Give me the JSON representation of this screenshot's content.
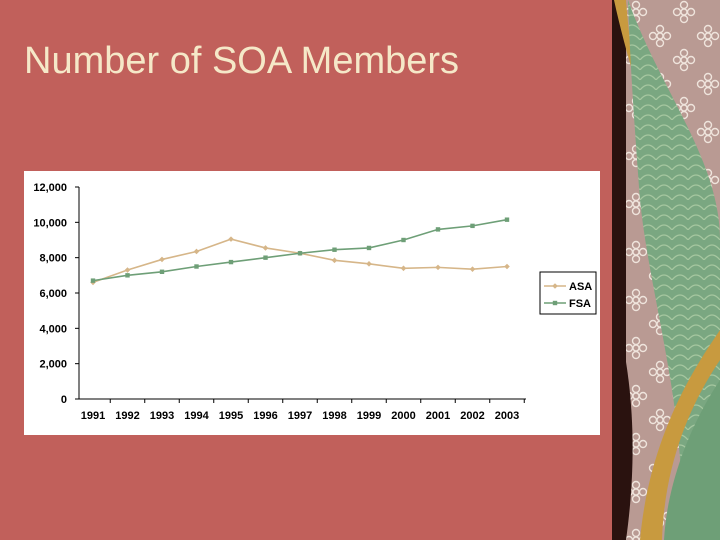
{
  "slide": {
    "title": "Number of SOA Members",
    "colors": {
      "background": "#c1605b",
      "title_text": "#f5e8c8",
      "panel": "#ffffff",
      "dark_border": "#2a120f",
      "sidebar_gold": "#c89a3f",
      "sidebar_green": "#6e9f77",
      "sidebar_flower_bg": "#b58d86"
    },
    "decor": {
      "sidebar_pattern": "flower-pattern",
      "accent": "ribbon-curves"
    }
  },
  "chart_data": {
    "type": "line",
    "title": "",
    "xlabel": "",
    "ylabel": "",
    "categories": [
      "1991",
      "1992",
      "1993",
      "1994",
      "1995",
      "1996",
      "1997",
      "1998",
      "1999",
      "2000",
      "2001",
      "2002",
      "2003"
    ],
    "ylim": [
      0,
      12000
    ],
    "yticks": [
      0,
      2000,
      4000,
      6000,
      8000,
      10000,
      12000
    ],
    "ytick_labels": [
      "0",
      "2,000",
      "4,000",
      "6,000",
      "8,000",
      "10,000",
      "12,000"
    ],
    "grid": false,
    "legend_position": "right",
    "series": [
      {
        "name": "ASA",
        "color": "#d6b689",
        "marker": "diamond",
        "values": [
          6600,
          7300,
          7900,
          8350,
          9050,
          8550,
          8250,
          7850,
          7650,
          7400,
          7450,
          7350,
          7500
        ]
      },
      {
        "name": "FSA",
        "color": "#6e9f77",
        "marker": "square",
        "values": [
          6700,
          7000,
          7200,
          7500,
          7750,
          8000,
          8250,
          8450,
          8550,
          9000,
          9600,
          9800,
          10150
        ]
      }
    ]
  }
}
